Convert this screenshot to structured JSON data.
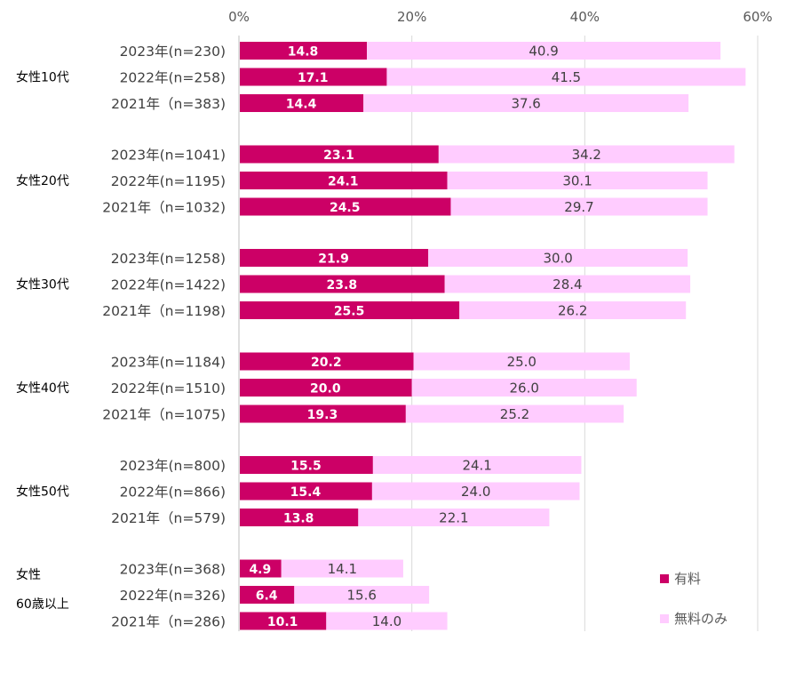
{
  "chart_data": {
    "type": "bar",
    "orientation": "horizontal",
    "stacked": true,
    "xlim": [
      0,
      60
    ],
    "x_ticks": [
      "0%",
      "20%",
      "40%",
      "60%"
    ],
    "grid": true,
    "legend": {
      "position": "bottom-right",
      "items": [
        {
          "name": "有料",
          "color": "#CC0066"
        },
        {
          "name": "無料のみ",
          "color": "#FFCCFF"
        }
      ]
    },
    "groups": [
      {
        "label": [
          "女性10代"
        ],
        "rows": [
          {
            "label": "2023年(n=230)",
            "paid": 14.8,
            "free": 40.9
          },
          {
            "label": "2022年(n=258)",
            "paid": 17.1,
            "free": 41.5
          },
          {
            "label": "2021年（n=383)",
            "paid": 14.4,
            "free": 37.6
          }
        ]
      },
      {
        "label": [
          "女性20代"
        ],
        "rows": [
          {
            "label": "2023年(n=1041)",
            "paid": 23.1,
            "free": 34.2
          },
          {
            "label": "2022年(n=1195)",
            "paid": 24.1,
            "free": 30.1
          },
          {
            "label": "2021年（n=1032)",
            "paid": 24.5,
            "free": 29.7
          }
        ]
      },
      {
        "label": [
          "女性30代"
        ],
        "rows": [
          {
            "label": "2023年(n=1258)",
            "paid": 21.9,
            "free": 30.0
          },
          {
            "label": "2022年(n=1422)",
            "paid": 23.8,
            "free": 28.4
          },
          {
            "label": "2021年（n=1198)",
            "paid": 25.5,
            "free": 26.2
          }
        ]
      },
      {
        "label": [
          "女性40代"
        ],
        "rows": [
          {
            "label": "2023年(n=1184)",
            "paid": 20.2,
            "free": 25.0
          },
          {
            "label": "2022年(n=1510)",
            "paid": 20.0,
            "free": 26.0
          },
          {
            "label": "2021年（n=1075)",
            "paid": 19.3,
            "free": 25.2
          }
        ]
      },
      {
        "label": [
          "女性50代"
        ],
        "rows": [
          {
            "label": "2023年(n=800)",
            "paid": 15.5,
            "free": 24.1
          },
          {
            "label": "2022年(n=866)",
            "paid": 15.4,
            "free": 24.0
          },
          {
            "label": "2021年（n=579)",
            "paid": 13.8,
            "free": 22.1
          }
        ]
      },
      {
        "label": [
          "女性",
          "60歳以上"
        ],
        "rows": [
          {
            "label": "2023年(n=368)",
            "paid": 4.9,
            "free": 14.1
          },
          {
            "label": "2022年(n=326)",
            "paid": 6.4,
            "free": 15.6
          },
          {
            "label": "2021年（n=286)",
            "paid": 10.1,
            "free": 14.0
          }
        ]
      }
    ]
  }
}
